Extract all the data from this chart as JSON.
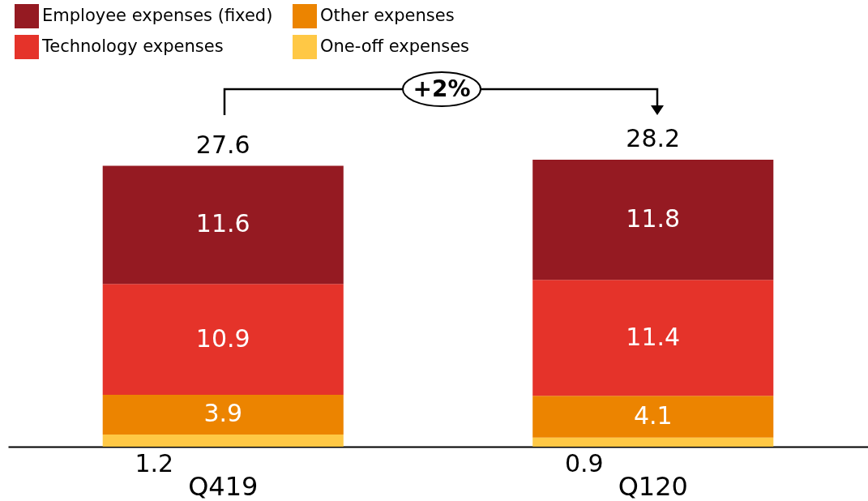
{
  "chart_data": {
    "type": "bar",
    "stacked": true,
    "categories": [
      "Q419",
      "Q120"
    ],
    "series": [
      {
        "name": "One-off expenses",
        "color": "#ffc845",
        "values": [
          1.2,
          0.9
        ]
      },
      {
        "name": "Other expenses",
        "color": "#ec8400",
        "values": [
          3.9,
          4.1
        ]
      },
      {
        "name": "Technology expenses",
        "color": "#e5332a",
        "values": [
          10.9,
          11.4
        ]
      },
      {
        "name": "Employee expenses (fixed)",
        "color": "#951a22",
        "values": [
          11.6,
          11.8
        ]
      }
    ],
    "data_labels": true,
    "totals": [
      "27.6",
      "28.2"
    ],
    "annotations": [
      "+2%"
    ],
    "legend": "top left",
    "grid": false
  }
}
